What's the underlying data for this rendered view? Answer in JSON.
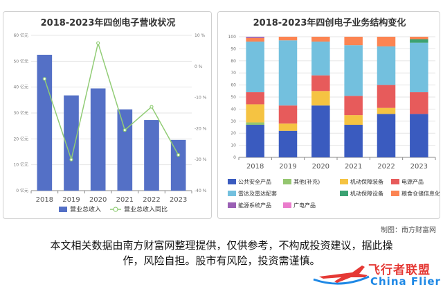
{
  "credit": "制图：南方财富网",
  "footer": {
    "line1": "本文相关数据由南方财富网整理提供，仅供参考，不构成投资建议，据此操",
    "line2": "作，风险自担。股市有风险，投资需谨慎。"
  },
  "logo": {
    "cn": "飞行者联盟",
    "en": "China Flier"
  },
  "colors": {
    "revenue_bar": "#5470c6",
    "yoy_line": "#91cc75",
    "segments": [
      "#3a5bbf",
      "#94c66f",
      "#f5c342",
      "#e75b5b",
      "#73c0de",
      "#3ba272",
      "#fc8452",
      "#9a60b4",
      "#ea7ccc"
    ]
  },
  "chart_data": [
    {
      "type": "bar",
      "title": "2018-2023年四创电子营收状况",
      "categories": [
        "2018",
        "2019",
        "2020",
        "2021",
        "2022",
        "2023"
      ],
      "y_left": {
        "min": 0,
        "max": 60,
        "ticks": [
          0,
          10,
          20,
          30,
          40,
          50,
          60
        ],
        "tick_labels": [
          "0 亿元",
          "10 亿元",
          "20 亿元",
          "30 亿元",
          "40 亿元",
          "50 亿元",
          "60 亿元"
        ]
      },
      "y_right": {
        "min": -40,
        "max": 10,
        "ticks": [
          -40,
          -30,
          -20,
          -10,
          0,
          10
        ],
        "tick_labels": [
          "-40 %",
          "-30 %",
          "-20 %",
          "-10 %",
          "0 %",
          "10 %"
        ]
      },
      "series": [
        {
          "name": "营业总收入",
          "type": "bar",
          "axis": "left",
          "values": [
            52.5,
            36.8,
            39.5,
            31.4,
            27.3,
            19.6
          ]
        },
        {
          "name": "营业总收入同比",
          "type": "line",
          "axis": "right",
          "values": [
            -4.0,
            -30.0,
            7.5,
            -20.5,
            -13.0,
            -28.5
          ]
        }
      ],
      "legend": "bottom"
    },
    {
      "type": "bar",
      "stacked": true,
      "title": "2018-2023年四创电子业务结构变化",
      "categories": [
        "2018",
        "2019",
        "2020",
        "2021",
        "2022",
        "2023"
      ],
      "y_axis": {
        "min": 0,
        "max": 100,
        "ticks": [
          0,
          10,
          20,
          30,
          40,
          50,
          60,
          70,
          80,
          90,
          100
        ]
      },
      "series": [
        {
          "name": "公共安全产品",
          "values": [
            27,
            22,
            43,
            27,
            36,
            36
          ]
        },
        {
          "name": "其他(补充)",
          "values": [
            2,
            0,
            0,
            0,
            0,
            0
          ]
        },
        {
          "name": "机动保障装备",
          "values": [
            15,
            6,
            12,
            8,
            5,
            0
          ]
        },
        {
          "name": "电源产品",
          "values": [
            10,
            15,
            13,
            16,
            19,
            18
          ]
        },
        {
          "name": "雷达及雷达配套",
          "values": [
            42,
            54,
            28,
            42,
            32,
            41
          ]
        },
        {
          "name": "机动保障设备",
          "values": [
            0,
            0,
            0,
            0,
            0,
            3
          ]
        },
        {
          "name": "粮食仓储信息化改造",
          "values": [
            3,
            3,
            4,
            7,
            8,
            2
          ]
        },
        {
          "name": "能源系统产品",
          "values": [
            1,
            0,
            0,
            0,
            0,
            0
          ]
        },
        {
          "name": "广电产品",
          "values": [
            0,
            0,
            0,
            0,
            0,
            0
          ]
        }
      ],
      "legend": "bottom"
    }
  ]
}
